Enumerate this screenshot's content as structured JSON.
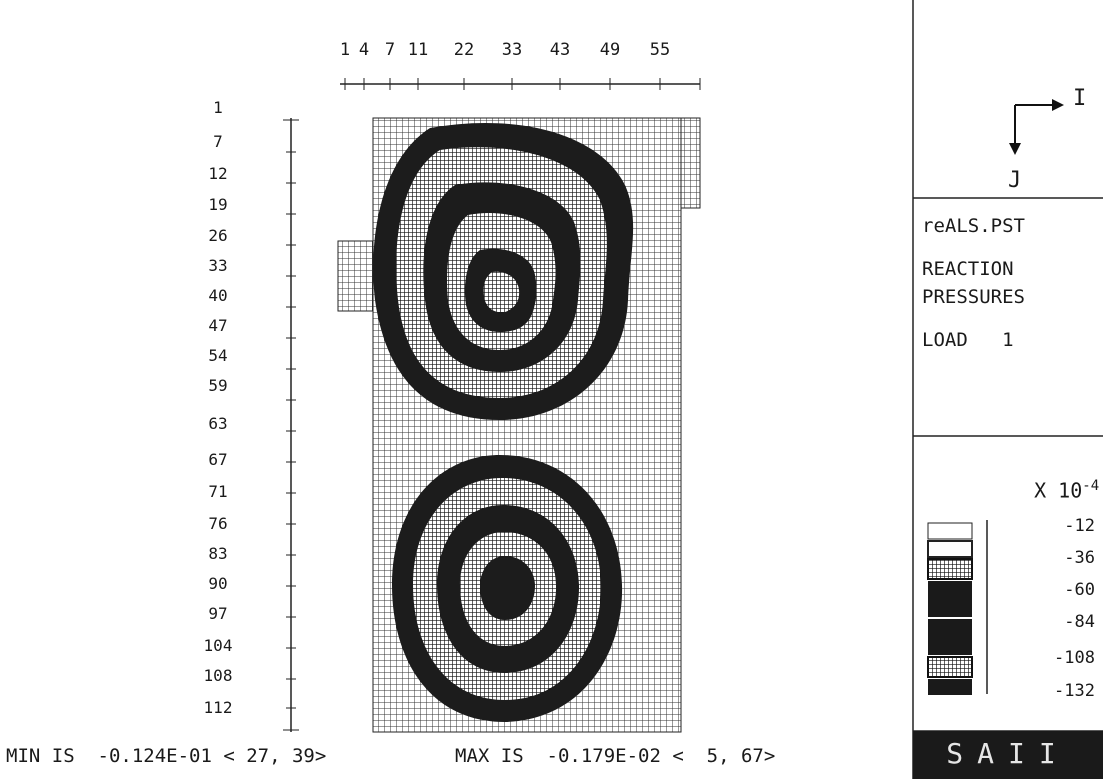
{
  "plot": {
    "i_ticks": [
      "1",
      "4",
      "7",
      "11",
      "22",
      "33",
      "43",
      "49",
      "55"
    ],
    "j_ticks": [
      "1",
      "7",
      "12",
      "19",
      "26",
      "33",
      "40",
      "47",
      "54",
      "59",
      "63",
      "67",
      "71",
      "76",
      "83",
      "90",
      "97",
      "104",
      "108",
      "112"
    ],
    "min_text": "MIN IS  -0.124E-01 < 27, 39>",
    "max_text": "MAX IS  -0.179E-02 <  5, 67>"
  },
  "side_panel": {
    "axis_i_label": "I",
    "axis_j_label": "J",
    "file_name": "reALS.PST",
    "title_line1": "REACTION",
    "title_line2": "PRESSURES",
    "load_label": "LOAD   1",
    "scale_label": "X 10",
    "scale_exponent": "-4",
    "legend_values": [
      "-12",
      "-36",
      "-60",
      "-84",
      "-108",
      "-132"
    ],
    "brand": "SAII"
  },
  "colors": {
    "ink": "#1a1a1a",
    "paper": "#ffffff",
    "mesh": "#333333"
  }
}
